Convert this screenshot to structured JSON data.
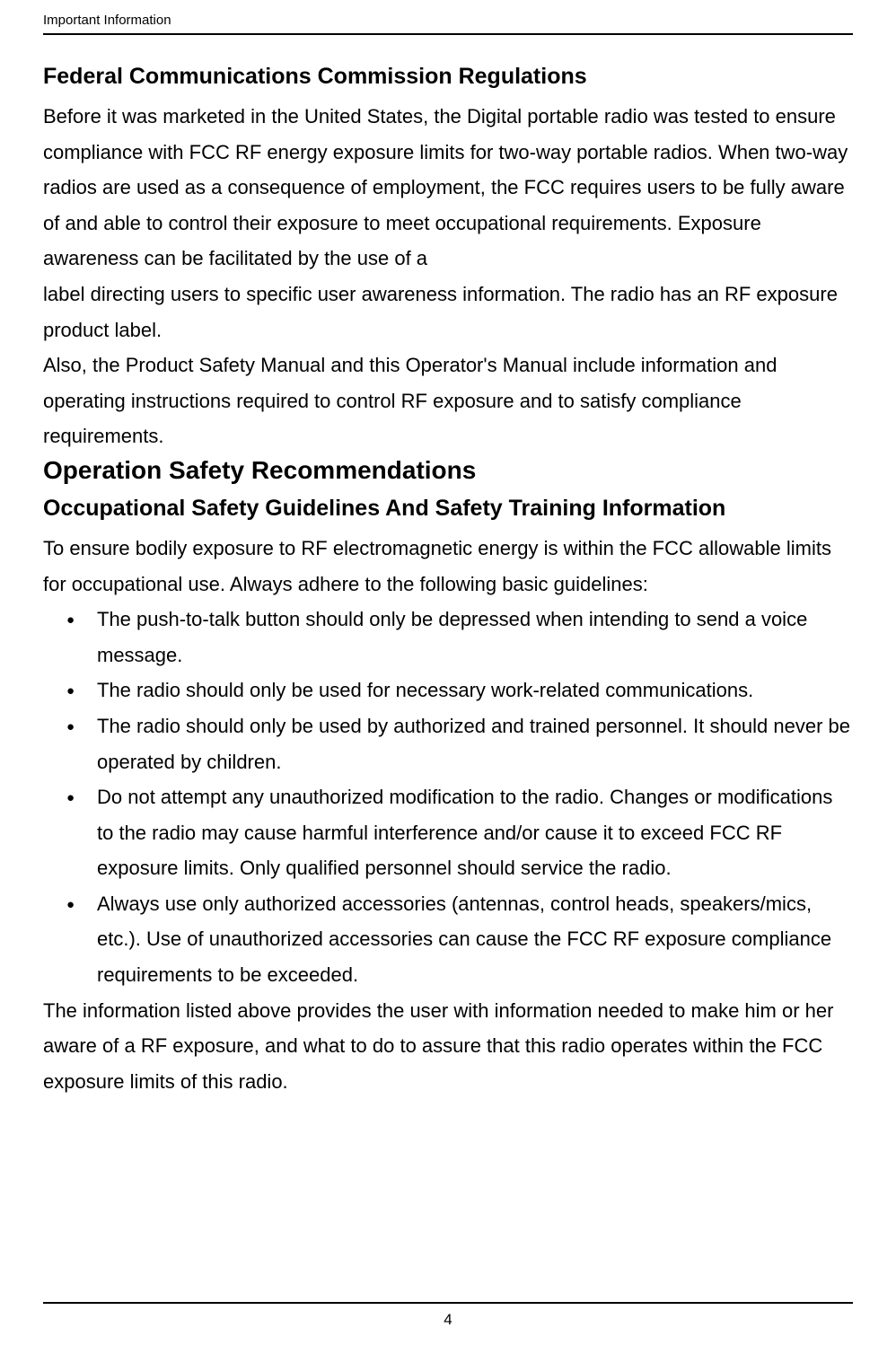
{
  "header": "Important Information",
  "section1": {
    "title": "Federal Communications Commission Regulations",
    "para": "Before it was marketed in the United States, the Digital portable radio was tested to ensure compliance with FCC RF energy exposure limits for two-way portable radios. When two-way radios are used as a consequence of employment, the FCC requires users to be fully aware of and able to control their exposure to meet occupational requirements. Exposure awareness can be facilitated by the use of a",
    "para2": "label directing users to specific user awareness information. The radio has an RF exposure product label.",
    "para3": "Also, the Product Safety Manual and this Operator's Manual include information and operating instructions required to control RF exposure and to satisfy compliance requirements."
  },
  "section2": {
    "title": "Operation Safety Recommendations",
    "subtitle": "Occupational Safety Guidelines And Safety Training Information",
    "intro": "To ensure bodily exposure to RF electromagnetic energy is within the FCC allowable limits for occupational use. Always adhere to the following basic guidelines:",
    "bullets": [
      "The push-to-talk button should only be depressed when intending to send a voice message.",
      "The radio should only be used for necessary work-related communications.",
      "The radio should only be used by authorized and trained personnel. It should never be operated by children.",
      "Do not attempt any unauthorized modification to the radio. Changes or modifications to the radio may cause harmful interference and/or cause it to exceed FCC RF exposure limits. Only qualified personnel should service the radio.",
      "Always use only authorized accessories (antennas, control heads, speakers/mics, etc.). Use of unauthorized accessories can cause the FCC RF exposure compliance requirements to be exceeded."
    ],
    "closing": "The information listed above provides the user with information needed to make him or her aware of a RF exposure, and what to do to assure that this radio operates within the FCC exposure limits of this radio."
  },
  "pageNumber": "4",
  "bulletMarker": "●"
}
